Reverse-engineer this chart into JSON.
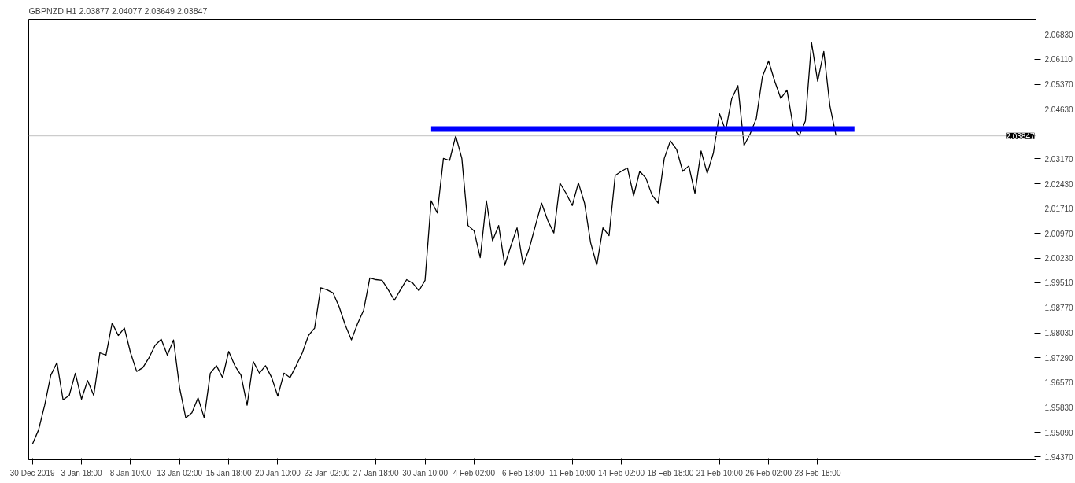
{
  "chart_data": {
    "type": "line",
    "title": "GBPNZD,H1  2.03877 2.04077 2.03649 2.03847",
    "categories": [
      "30 Dec 2019",
      null,
      null,
      null,
      null,
      null,
      null,
      null,
      "3 Jan 18:00",
      null,
      null,
      null,
      null,
      null,
      null,
      null,
      "8 Jan 10:00",
      null,
      null,
      null,
      null,
      null,
      null,
      null,
      "13 Jan 02:00",
      null,
      null,
      null,
      null,
      null,
      null,
      null,
      "15 Jan 18:00",
      null,
      null,
      null,
      null,
      null,
      null,
      null,
      "20 Jan 10:00",
      null,
      null,
      null,
      null,
      null,
      null,
      null,
      "23 Jan 02:00",
      null,
      null,
      null,
      null,
      null,
      null,
      null,
      "27 Jan 18:00",
      null,
      null,
      null,
      null,
      null,
      null,
      null,
      "30 Jan 10:00",
      null,
      null,
      null,
      null,
      null,
      null,
      null,
      "4 Feb 02:00",
      null,
      null,
      null,
      null,
      null,
      null,
      null,
      "6 Feb 18:00",
      null,
      null,
      null,
      null,
      null,
      null,
      null,
      "11 Feb 10:00",
      null,
      null,
      null,
      null,
      null,
      null,
      null,
      "14 Feb 02:00",
      null,
      null,
      null,
      null,
      null,
      null,
      null,
      "18 Feb 18:00",
      null,
      null,
      null,
      null,
      null,
      null,
      null,
      "21 Feb 10:00",
      null,
      null,
      null,
      null,
      null,
      null,
      null,
      "26 Feb 02:00",
      null,
      null,
      null,
      null,
      null,
      null,
      null,
      "28 Feb 18:00",
      null,
      null,
      null,
      null,
      null,
      null,
      null,
      null,
      null,
      null,
      null,
      null,
      null,
      null,
      null,
      null,
      null,
      null,
      null,
      null,
      null,
      null,
      null,
      null,
      null,
      null,
      null,
      null,
      null,
      null,
      null,
      null,
      null,
      null,
      null
    ],
    "ylim": [
      1.9428,
      2.0729
    ],
    "yticks": [
      {
        "value": 1.9437,
        "label": "1.94370"
      },
      {
        "value": 1.9509,
        "label": "1.95090"
      },
      {
        "value": 1.9583,
        "label": "1.95830"
      },
      {
        "value": 1.9657,
        "label": "1.96570"
      },
      {
        "value": 1.9729,
        "label": "1.97290"
      },
      {
        "value": 1.9803,
        "label": "1.98030"
      },
      {
        "value": 1.9877,
        "label": "1.98770"
      },
      {
        "value": 1.9951,
        "label": "1.99510"
      },
      {
        "value": 2.0023,
        "label": "2.00230"
      },
      {
        "value": 2.0097,
        "label": "2.00970"
      },
      {
        "value": 2.0171,
        "label": "2.01710"
      },
      {
        "value": 2.0243,
        "label": "2.02430"
      },
      {
        "value": 2.0317,
        "label": "2.03170"
      },
      {
        "value": 2.0463,
        "label": "2.04630"
      },
      {
        "value": 2.0537,
        "label": "2.05370"
      },
      {
        "value": 2.0611,
        "label": "2.06110"
      },
      {
        "value": 2.0683,
        "label": "2.06830"
      }
    ],
    "ref_lines": [
      {
        "axis": "y",
        "value": 2.03847,
        "label": "2.03847",
        "color": "#c0c0c0"
      }
    ],
    "series": [
      {
        "color": "#000000",
        "values": [
          1.9474,
          1.9516,
          1.9589,
          1.9678,
          1.9715,
          1.9605,
          1.9618,
          1.9684,
          1.9607,
          1.9662,
          1.9618,
          1.9744,
          1.9737,
          1.9832,
          1.9795,
          1.9817,
          1.9744,
          1.9689,
          1.97,
          1.9729,
          1.9766,
          1.9784,
          1.9737,
          1.9782,
          1.964,
          1.9552,
          1.9567,
          1.9611,
          1.9552,
          1.9684,
          1.9706,
          1.9671,
          1.9748,
          1.9706,
          1.9678,
          1.9589,
          1.9718,
          1.9684,
          1.9706,
          1.9671,
          1.9616,
          1.9684,
          1.9671,
          1.9706,
          1.9744,
          1.9795,
          1.9817,
          1.9936,
          1.993,
          1.9921,
          1.988,
          1.9826,
          1.9782,
          1.983,
          1.987,
          1.9965,
          1.996,
          1.9958,
          1.993,
          1.9899,
          1.993,
          1.996,
          1.995,
          1.9927,
          1.9958,
          2.0193,
          2.0157,
          2.0318,
          2.0312,
          2.0385,
          2.0318,
          2.012,
          2.0104,
          2.0025,
          2.0193,
          2.0075,
          2.012,
          2.0003,
          2.006,
          2.0113,
          2.0003,
          2.0053,
          2.012,
          2.0186,
          2.0135,
          2.0098,
          2.0245,
          2.0215,
          2.0179,
          2.0246,
          2.0186,
          2.0069,
          2.0003,
          2.0113,
          2.009,
          2.0268,
          2.028,
          2.029,
          2.0208,
          2.028,
          2.026,
          2.021,
          2.0186,
          2.0318,
          2.037,
          2.0345,
          2.028,
          2.0296,
          2.0215,
          2.034,
          2.0274,
          2.0334,
          2.045,
          2.04,
          2.0495,
          2.0533,
          2.0356,
          2.0391,
          2.0436,
          2.056,
          2.0606,
          2.0546,
          2.0495,
          2.052,
          2.0413,
          2.0385,
          2.0429,
          2.066,
          2.0546,
          2.0634,
          2.0473,
          2.0385,
          null,
          null,
          null,
          null,
          null,
          null,
          null,
          null,
          null,
          null,
          null,
          null,
          null,
          null,
          null,
          null,
          null,
          null,
          null,
          null,
          null,
          null,
          null,
          null,
          null,
          null,
          null,
          null,
          null,
          null,
          null,
          null
        ]
      },
      {
        "color": "#0000ff",
        "values": [
          null,
          null,
          null,
          null,
          null,
          null,
          null,
          null,
          null,
          null,
          null,
          null,
          null,
          null,
          null,
          null,
          null,
          null,
          null,
          null,
          null,
          null,
          null,
          null,
          null,
          null,
          null,
          null,
          null,
          null,
          null,
          null,
          null,
          null,
          null,
          null,
          null,
          null,
          null,
          null,
          null,
          null,
          null,
          null,
          null,
          null,
          null,
          null,
          null,
          null,
          null,
          null,
          null,
          null,
          null,
          null,
          null,
          null,
          null,
          null,
          null,
          null,
          null,
          null,
          null,
          2.0405,
          2.0405,
          2.0405,
          2.0405,
          2.0405,
          2.0405,
          2.0405,
          2.0405,
          2.0405,
          2.0405,
          2.0405,
          2.0405,
          2.0405,
          2.0405,
          2.0405,
          2.0405,
          2.0405,
          2.0405,
          2.0405,
          2.0405,
          2.0405,
          2.0405,
          2.0405,
          2.0405,
          2.0405,
          2.0405,
          2.0405,
          2.0405,
          2.0405,
          2.0405,
          2.0405,
          2.0405,
          2.0405,
          2.0405,
          2.0405,
          2.0405,
          2.0405,
          2.0405,
          2.0405,
          2.0405,
          2.0405,
          2.0405,
          2.0405,
          2.0405,
          2.0405,
          2.0405,
          2.0405,
          2.0405,
          2.0405,
          2.0405,
          2.0405,
          2.0405,
          2.0405,
          2.0405,
          2.0405,
          2.0405,
          2.0405,
          2.0405,
          2.0405,
          2.0405,
          2.0405,
          2.0405,
          2.0405,
          2.0405,
          2.0405,
          2.0405,
          2.0405,
          2.0405,
          2.0405,
          2.0405,
          null,
          null,
          null,
          null,
          null,
          null,
          null,
          null,
          null,
          null,
          null,
          null,
          null,
          null,
          null,
          null,
          null,
          null,
          null,
          null,
          null,
          null,
          null,
          null,
          null,
          null,
          null,
          null,
          null
        ]
      }
    ]
  }
}
